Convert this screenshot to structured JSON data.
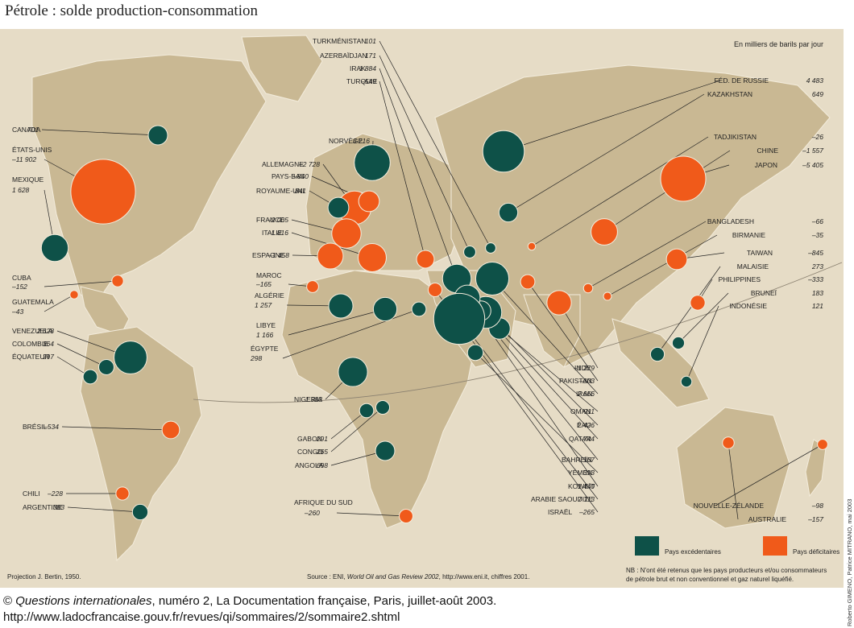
{
  "title": "Pétrole : solde production-consommation",
  "unit": "En milliers de barils par jour",
  "colors": {
    "excedent": "#0e5148",
    "deficit": "#f05a1a",
    "land": "#c9b893",
    "sea": "#e6dcc6"
  },
  "legend": {
    "excedent": "Pays excédentaires",
    "deficit": "Pays déficitaires"
  },
  "projection": "Projection J. Bertin,  1950.",
  "source_prefix": "Source : ENI, ",
  "source_title": "World Oil and Gas Review 2002",
  "source_suffix": ", http://www.eni.it, chiffres 2001.",
  "note_line1": "NB : N'ont été retenus que les pays producteurs et/ou consommateurs",
  "note_line2": "de pétrole brut et non conventionnel et gaz naturel liquéfié.",
  "credit": "Roberto GIMENO, Patrice MITRANO, mai 2003",
  "footer_line1_prefix": "© ",
  "footer_line1_title": "Questions internationales",
  "footer_line1_suffix": ", numéro 2, La Documentation française, Paris, juillet-août 2003.",
  "footer_line2": "http://www.ladocfrancaise.gouv.fr/revues/qi/sommaires/2/sommaire2.shtml",
  "countries": [
    {
      "name": "CANADA",
      "value": "701"
    },
    {
      "name": "ÉTATS-UNIS",
      "value": "–11 902"
    },
    {
      "name": "MEXIQUE",
      "value": "1 628"
    },
    {
      "name": "CUBA",
      "value": "–152"
    },
    {
      "name": "GUATEMALA",
      "value": "–43"
    },
    {
      "name": "VENEZUELA",
      "value": "2 628"
    },
    {
      "name": "COLOMBIE",
      "value": "364"
    },
    {
      "name": "ÉQUATEUR",
      "value": "297"
    },
    {
      "name": "BRÉSIL",
      "value": "–534"
    },
    {
      "name": "CHILI",
      "value": "–228"
    },
    {
      "name": "ARGENTINE",
      "value": "383"
    },
    {
      "name": "NORVÈGE",
      "value": "3 216"
    },
    {
      "name": "ALLEMAGNE",
      "value": "–2 728"
    },
    {
      "name": "PAYS-BAS",
      "value": "–840"
    },
    {
      "name": "ROYAUME-UNI",
      "value": "841"
    },
    {
      "name": "FRANCE",
      "value": "–2 005"
    },
    {
      "name": "ITALIE",
      "value": "–1 816"
    },
    {
      "name": "ESPAGNE",
      "value": "–1 458"
    },
    {
      "name": "MAROC",
      "value": "–165"
    },
    {
      "name": "ALGÉRIE",
      "value": "1 257"
    },
    {
      "name": "LIBYE",
      "value": "1 166"
    },
    {
      "name": "ÉGYPTE",
      "value": "298"
    },
    {
      "name": "NIGERIA",
      "value": "1 983"
    },
    {
      "name": "GABON",
      "value": "291"
    },
    {
      "name": "CONGO",
      "value": "265"
    },
    {
      "name": "ANGOLA",
      "value": "698"
    },
    {
      "name": "AFRIQUE DU SUD",
      "value": "–260"
    },
    {
      "name": "TURKMÉNISTAN",
      "value": "101"
    },
    {
      "name": "AZERBAÏDJAN",
      "value": "171"
    },
    {
      "name": "IRAK",
      "value": "1 884"
    },
    {
      "name": "TURQUIE",
      "value": "–549"
    },
    {
      "name": "FÉD. DE RUSSIE",
      "value": "4 483"
    },
    {
      "name": "KAZAKHSTAN",
      "value": "649"
    },
    {
      "name": "TADJIKISTAN",
      "value": "–26"
    },
    {
      "name": "CHINE",
      "value": "–1 557"
    },
    {
      "name": "JAPON",
      "value": "–5 405"
    },
    {
      "name": "BANGLADESH",
      "value": "–66"
    },
    {
      "name": "BIRMANIE",
      "value": "–35"
    },
    {
      "name": "TAIWAN",
      "value": "–845"
    },
    {
      "name": "MALAISIE",
      "value": "273"
    },
    {
      "name": "PHILIPPINES",
      "value": "–333"
    },
    {
      "name": "BRUNEÏ",
      "value": "183"
    },
    {
      "name": "INDONÉSIE",
      "value": "121"
    },
    {
      "name": "INDE",
      "value": "–1 279"
    },
    {
      "name": "PAKISTAN",
      "value": "–303"
    },
    {
      "name": "IRAN",
      "value": "2 666"
    },
    {
      "name": "OMAN",
      "value": "911"
    },
    {
      "name": "ÉAU",
      "value": "2 426"
    },
    {
      "name": "QATAR",
      "value": "744"
    },
    {
      "name": "BAHREÏN",
      "value": "167"
    },
    {
      "name": "YÉMEN",
      "value": "393"
    },
    {
      "name": "KOWEÏT",
      "value": "1 440"
    },
    {
      "name": "ARABIE SAOUDITE",
      "value": "7 113"
    },
    {
      "name": "ISRAËL",
      "value": "–265"
    },
    {
      "name": "NOUVELLE-ZÉLANDE",
      "value": "–98"
    },
    {
      "name": "AUSTRALIE",
      "value": "–157"
    }
  ]
}
